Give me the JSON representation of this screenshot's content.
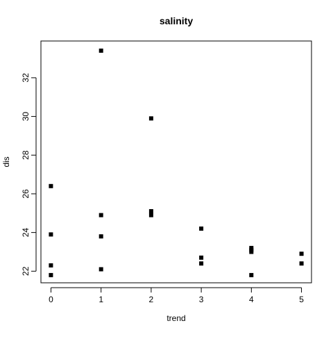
{
  "chart_data": {
    "type": "scatter",
    "title": "salinity",
    "xlabel": "trend",
    "ylabel": "dis",
    "xlim": [
      -0.2,
      5.2
    ],
    "ylim": [
      21.4,
      33.9
    ],
    "xticks": [
      0,
      1,
      2,
      3,
      4,
      5
    ],
    "yticks": [
      22,
      24,
      26,
      28,
      30,
      32
    ],
    "grid": false,
    "legend": "none",
    "marker": "filled-square",
    "marker_color": "#000000",
    "points": [
      {
        "x": 0,
        "y": 26.4
      },
      {
        "x": 0,
        "y": 23.9
      },
      {
        "x": 0,
        "y": 22.3
      },
      {
        "x": 0,
        "y": 21.8
      },
      {
        "x": 1,
        "y": 33.4
      },
      {
        "x": 1,
        "y": 24.9
      },
      {
        "x": 1,
        "y": 23.8
      },
      {
        "x": 1,
        "y": 22.1
      },
      {
        "x": 2,
        "y": 29.9
      },
      {
        "x": 2,
        "y": 25.1
      },
      {
        "x": 2,
        "y": 24.9
      },
      {
        "x": 3,
        "y": 24.2
      },
      {
        "x": 3,
        "y": 22.7
      },
      {
        "x": 3,
        "y": 22.4
      },
      {
        "x": 4,
        "y": 23.2
      },
      {
        "x": 4,
        "y": 23.1
      },
      {
        "x": 4,
        "y": 23.0
      },
      {
        "x": 4,
        "y": 21.8
      },
      {
        "x": 5,
        "y": 22.9
      },
      {
        "x": 5,
        "y": 22.4
      }
    ]
  }
}
